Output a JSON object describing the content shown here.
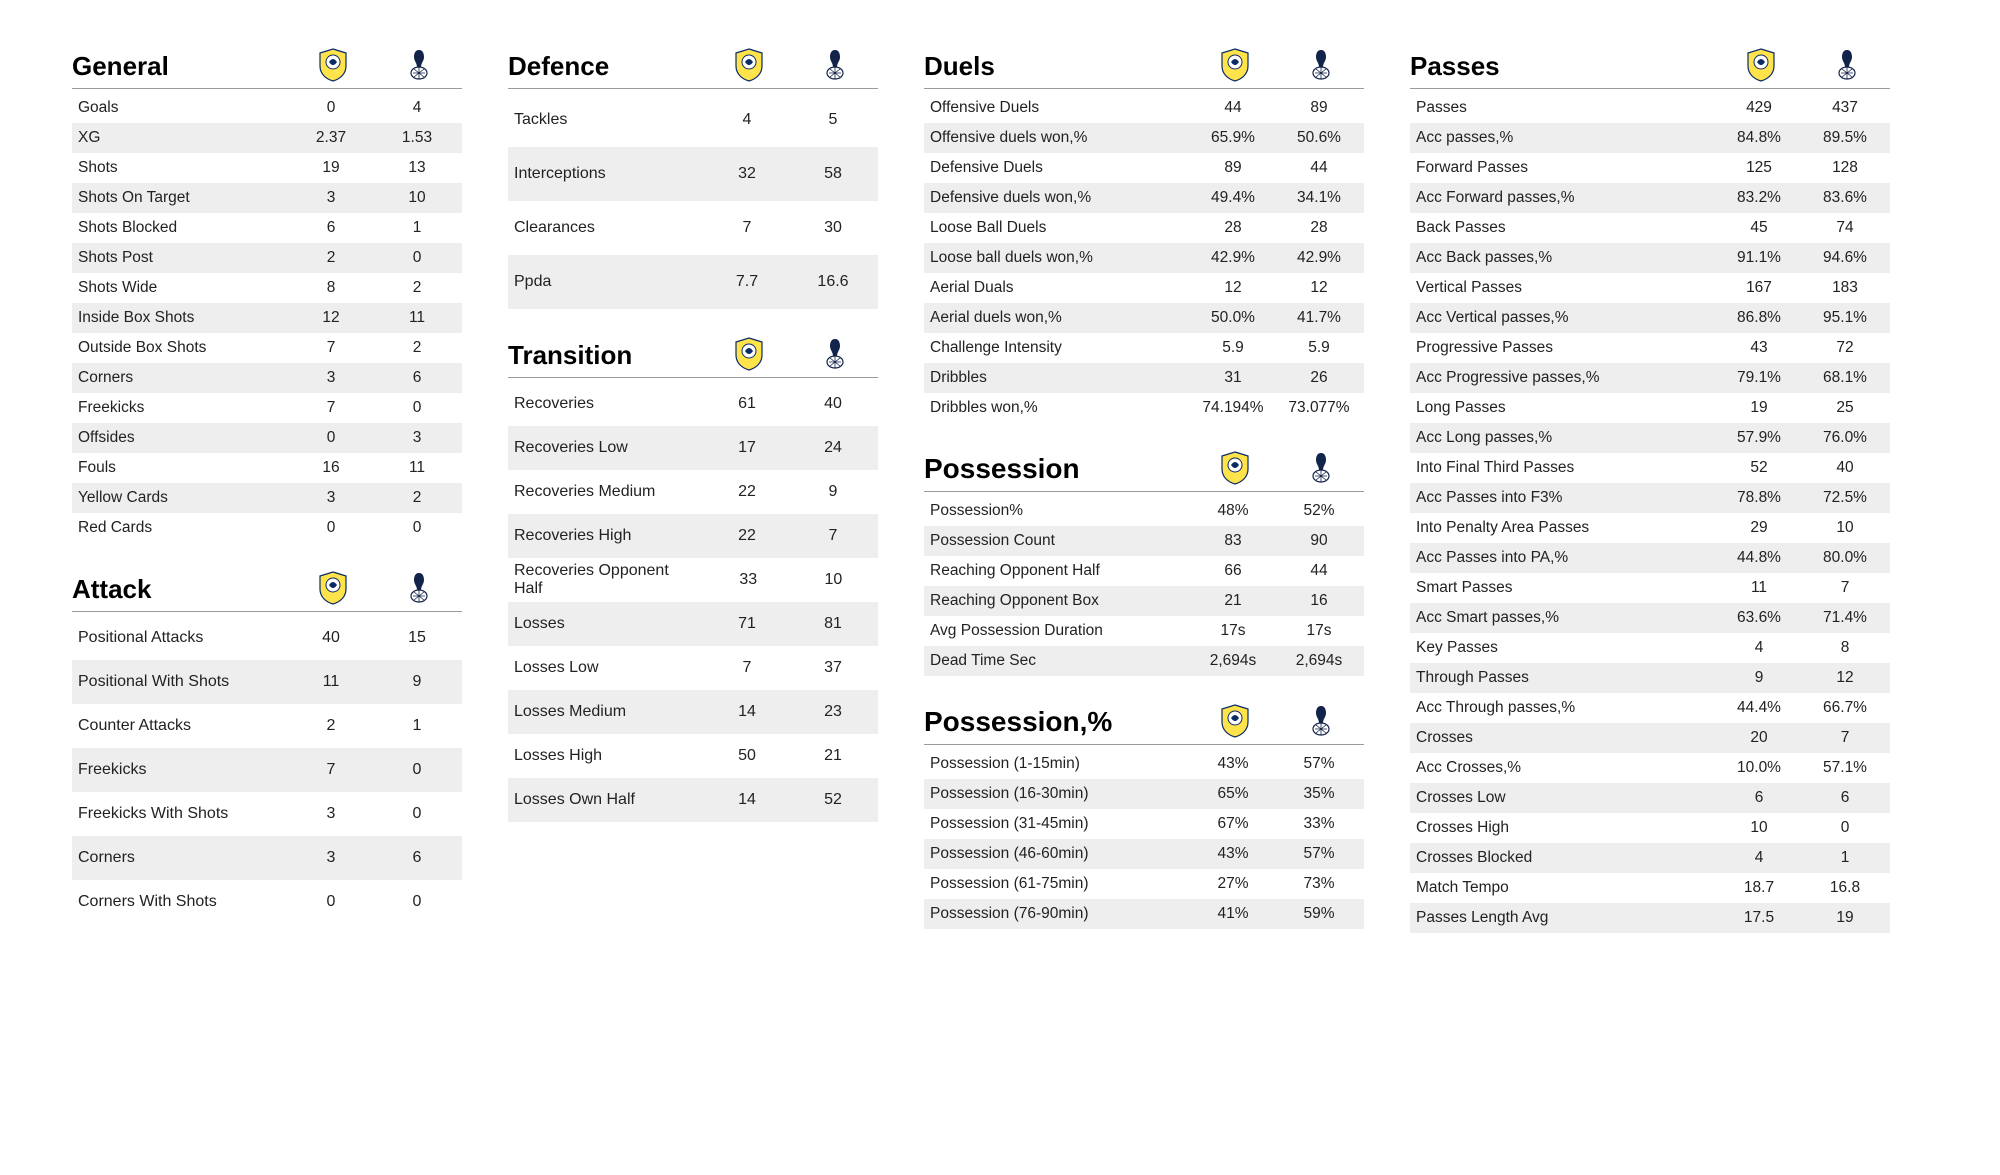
{
  "teams": {
    "home": {
      "name": "Leeds",
      "crest_colors": {
        "shield_fill": "#ffe34a",
        "shield_stroke": "#0a2a66",
        "inner": "#ffffff"
      }
    },
    "away": {
      "name": "Tottenham",
      "crest_colors": {
        "shield_fill": "#ffffff",
        "shield_stroke": "#13244a",
        "inner": "#13244a"
      }
    }
  },
  "sections": {
    "general": {
      "title": "General",
      "rows": [
        {
          "label": "Goals",
          "home": "0",
          "away": "4"
        },
        {
          "label": "XG",
          "home": "2.37",
          "away": "1.53"
        },
        {
          "label": "Shots",
          "home": "19",
          "away": "13"
        },
        {
          "label": "Shots On Target",
          "home": "3",
          "away": "10"
        },
        {
          "label": "Shots Blocked",
          "home": "6",
          "away": "1"
        },
        {
          "label": "Shots Post",
          "home": "2",
          "away": "0"
        },
        {
          "label": "Shots Wide",
          "home": "8",
          "away": "2"
        },
        {
          "label": "Inside Box Shots",
          "home": "12",
          "away": "11"
        },
        {
          "label": "Outside Box Shots",
          "home": "7",
          "away": "2"
        },
        {
          "label": "Corners",
          "home": "3",
          "away": "6"
        },
        {
          "label": "Freekicks",
          "home": "7",
          "away": "0"
        },
        {
          "label": "Offsides",
          "home": "0",
          "away": "3"
        },
        {
          "label": "Fouls",
          "home": "16",
          "away": "11"
        },
        {
          "label": "Yellow Cards",
          "home": "3",
          "away": "2"
        },
        {
          "label": "Red Cards",
          "home": "0",
          "away": "0"
        }
      ]
    },
    "attack": {
      "title": "Attack",
      "rows": [
        {
          "label": "Positional Attacks",
          "home": "40",
          "away": "15"
        },
        {
          "label": "Positional With Shots",
          "home": "11",
          "away": "9"
        },
        {
          "label": "Counter Attacks",
          "home": "2",
          "away": "1"
        },
        {
          "label": "Freekicks",
          "home": "7",
          "away": "0"
        },
        {
          "label": "Freekicks With Shots",
          "home": "3",
          "away": "0"
        },
        {
          "label": "Corners",
          "home": "3",
          "away": "6"
        },
        {
          "label": "Corners With Shots",
          "home": "0",
          "away": "0"
        }
      ]
    },
    "defence": {
      "title": "Defence",
      "rows": [
        {
          "label": "Tackles",
          "home": "4",
          "away": "5"
        },
        {
          "label": "Interceptions",
          "home": "32",
          "away": "58"
        },
        {
          "label": "Clearances",
          "home": "7",
          "away": "30"
        },
        {
          "label": "Ppda",
          "home": "7.7",
          "away": "16.6"
        }
      ]
    },
    "transition": {
      "title": "Transition",
      "rows": [
        {
          "label": "Recoveries",
          "home": "61",
          "away": "40"
        },
        {
          "label": "Recoveries Low",
          "home": "17",
          "away": "24"
        },
        {
          "label": "Recoveries Medium",
          "home": "22",
          "away": "9"
        },
        {
          "label": "Recoveries High",
          "home": "22",
          "away": "7"
        },
        {
          "label": "Recoveries Opponent Half",
          "home": "33",
          "away": "10"
        },
        {
          "label": "Losses",
          "home": "71",
          "away": "81"
        },
        {
          "label": "Losses Low",
          "home": "7",
          "away": "37"
        },
        {
          "label": "Losses Medium",
          "home": "14",
          "away": "23"
        },
        {
          "label": "Losses High",
          "home": "50",
          "away": "21"
        },
        {
          "label": "Losses Own Half",
          "home": "14",
          "away": "52"
        }
      ]
    },
    "duels": {
      "title": "Duels",
      "rows": [
        {
          "label": "Offensive Duels",
          "home": "44",
          "away": "89"
        },
        {
          "label": "Offensive duels won,%",
          "home": "65.9%",
          "away": "50.6%"
        },
        {
          "label": "Defensive Duels",
          "home": "89",
          "away": "44"
        },
        {
          "label": "Defensive duels won,%",
          "home": "49.4%",
          "away": "34.1%"
        },
        {
          "label": "Loose Ball Duels",
          "home": "28",
          "away": "28"
        },
        {
          "label": "Loose ball duels won,%",
          "home": "42.9%",
          "away": "42.9%"
        },
        {
          "label": "Aerial Duals",
          "home": "12",
          "away": "12"
        },
        {
          "label": "Aerial duels won,%",
          "home": "50.0%",
          "away": "41.7%"
        },
        {
          "label": "Challenge Intensity",
          "home": "5.9",
          "away": "5.9"
        },
        {
          "label": "Dribbles",
          "home": "31",
          "away": "26"
        },
        {
          "label": "Dribbles won,%",
          "home": "74.194%",
          "away": "73.077%"
        }
      ]
    },
    "possession": {
      "title": "Possession",
      "rows": [
        {
          "label": "Possession%",
          "home": "48%",
          "away": "52%"
        },
        {
          "label": "Possession Count",
          "home": "83",
          "away": "90"
        },
        {
          "label": "Reaching Opponent Half",
          "home": "66",
          "away": "44"
        },
        {
          "label": "Reaching Opponent Box",
          "home": "21",
          "away": "16"
        },
        {
          "label": "Avg Possession Duration",
          "home": "17s",
          "away": "17s"
        },
        {
          "label": "Dead Time Sec",
          "home": "2,694s",
          "away": "2,694s"
        }
      ]
    },
    "possessionPct": {
      "title": "Possession,%",
      "rows": [
        {
          "label": "Possession (1-15min)",
          "home": "43%",
          "away": "57%"
        },
        {
          "label": "Possession (16-30min)",
          "home": "65%",
          "away": "35%"
        },
        {
          "label": "Possession (31-45min)",
          "home": "67%",
          "away": "33%"
        },
        {
          "label": "Possession (46-60min)",
          "home": "43%",
          "away": "57%"
        },
        {
          "label": "Possession (61-75min)",
          "home": "27%",
          "away": "73%"
        },
        {
          "label": "Possession (76-90min)",
          "home": "41%",
          "away": "59%"
        }
      ]
    },
    "passes": {
      "title": "Passes",
      "rows": [
        {
          "label": "Passes",
          "home": "429",
          "away": "437"
        },
        {
          "label": "Acc passes,%",
          "home": "84.8%",
          "away": "89.5%"
        },
        {
          "label": "Forward Passes",
          "home": "125",
          "away": "128"
        },
        {
          "label": "Acc Forward passes,%",
          "home": "83.2%",
          "away": "83.6%"
        },
        {
          "label": "Back Passes",
          "home": "45",
          "away": "74"
        },
        {
          "label": "Acc Back passes,%",
          "home": "91.1%",
          "away": "94.6%"
        },
        {
          "label": "Vertical Passes",
          "home": "167",
          "away": "183"
        },
        {
          "label": "Acc Vertical passes,%",
          "home": "86.8%",
          "away": "95.1%"
        },
        {
          "label": "Progressive Passes",
          "home": "43",
          "away": "72"
        },
        {
          "label": "Acc Progressive passes,%",
          "home": "79.1%",
          "away": "68.1%"
        },
        {
          "label": "Long Passes",
          "home": "19",
          "away": "25"
        },
        {
          "label": "Acc Long passes,%",
          "home": "57.9%",
          "away": "76.0%"
        },
        {
          "label": "Into Final Third Passes",
          "home": "52",
          "away": "40"
        },
        {
          "label": "Acc Passes into F3%",
          "home": "78.8%",
          "away": "72.5%"
        },
        {
          "label": "Into Penalty Area Passes",
          "home": "29",
          "away": "10"
        },
        {
          "label": "Acc Passes into PA,%",
          "home": "44.8%",
          "away": "80.0%"
        },
        {
          "label": "Smart Passes",
          "home": "11",
          "away": "7"
        },
        {
          "label": "Acc Smart passes,%",
          "home": "63.6%",
          "away": "71.4%"
        },
        {
          "label": "Key Passes",
          "home": "4",
          "away": "8"
        },
        {
          "label": "Through Passes",
          "home": "9",
          "away": "12"
        },
        {
          "label": "Acc Through passes,%",
          "home": "44.4%",
          "away": "66.7%"
        },
        {
          "label": "Crosses",
          "home": "20",
          "away": "7"
        },
        {
          "label": "Acc Crosses,%",
          "home": "10.0%",
          "away": "57.1%"
        },
        {
          "label": "Crosses Low",
          "home": "6",
          "away": "6"
        },
        {
          "label": "Crosses High",
          "home": "10",
          "away": "0"
        },
        {
          "label": "Crosses Blocked",
          "home": "4",
          "away": "1"
        },
        {
          "label": "Match Tempo",
          "home": "18.7",
          "away": "16.8"
        },
        {
          "label": "Passes Length Avg",
          "home": "17.5",
          "away": "19"
        }
      ]
    }
  },
  "layout": {
    "columns": [
      {
        "key": "col1",
        "sections": [
          "general",
          "attack"
        ],
        "rowClass": {
          "general": "tight",
          "attack": "gap-lg"
        }
      },
      {
        "key": "col2",
        "sections": [
          "defence",
          "transition"
        ],
        "rowClass": {
          "defence": "gap-xl",
          "transition": "gap-lg"
        }
      },
      {
        "key": "col3",
        "sections": [
          "duels",
          "possession",
          "possessionPct"
        ],
        "rowClass": {
          "duels": "tight",
          "possession": "tight",
          "possessionPct": "tight"
        }
      },
      {
        "key": "col4",
        "sections": [
          "passes"
        ],
        "rowClass": {
          "passes": "tight"
        }
      }
    ],
    "bigTitles": [
      "possession",
      "possessionPct"
    ]
  }
}
